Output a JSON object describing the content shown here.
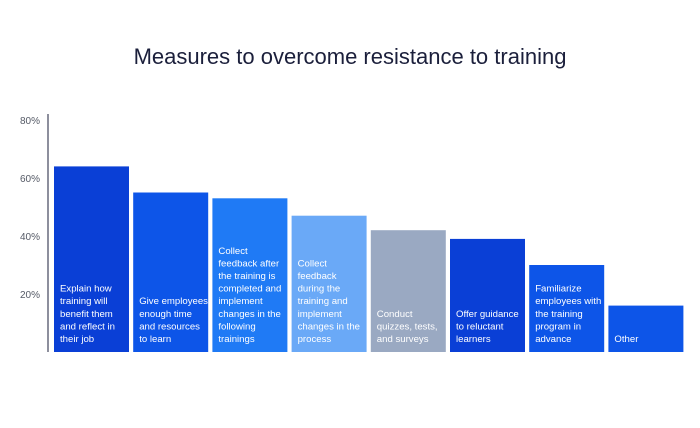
{
  "chart_data": {
    "type": "bar",
    "title": "Measures to overcome resistance to training",
    "xlabel": "",
    "ylabel": "",
    "ylim": [
      0,
      80
    ],
    "yticks": [
      "20%",
      "40%",
      "60%",
      "80%"
    ],
    "ytick_values": [
      20,
      40,
      60,
      80
    ],
    "grid": false,
    "categories": [
      "Explain how training will benefit them and reflect in their job",
      "Give employees enough time and resources to learn",
      "Collect feedback after the training is completed and implement changes in the following trainings",
      "Collect feedback during the training and implement changes in the process",
      "Conduct quizzes, tests, and surveys",
      "Offer guidance to reluctant learners",
      "Familiarize employees with the training program in advance",
      "Other"
    ],
    "category_lines": [
      [
        "Explain how",
        "training will",
        "benefit them",
        "and reflect in",
        "their job"
      ],
      [
        "Give employees",
        "enough time",
        "and resources",
        "to learn"
      ],
      [
        "Collect",
        "feedback after",
        "the training is",
        "completed and",
        "implement",
        "changes in the",
        "following",
        "trainings"
      ],
      [
        "Collect",
        "feedback",
        "during the",
        "training and",
        "implement",
        "changes in the",
        "process"
      ],
      [
        "Conduct",
        "quizzes, tests,",
        "and surveys"
      ],
      [
        "Offer guidance",
        "to reluctant",
        "learners"
      ],
      [
        "Familiarize",
        "employees with",
        "the training",
        "program in",
        "advance"
      ],
      [
        "Other"
      ]
    ],
    "values": [
      64,
      55,
      53,
      47,
      42,
      39,
      30,
      16
    ],
    "colors": [
      "#0a3fd6",
      "#0d55e8",
      "#1f7af5",
      "#6aa9f7",
      "#9aa9c2",
      "#0a3fd6",
      "#0d55e8",
      "#0d55e8"
    ]
  }
}
